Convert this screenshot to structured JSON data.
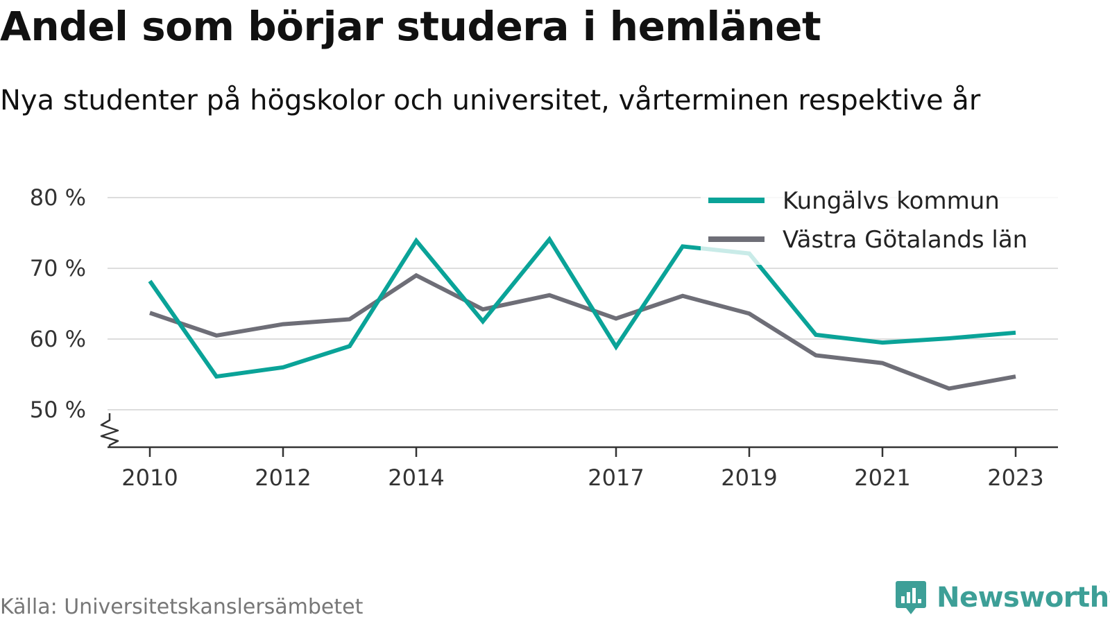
{
  "title": "Andel som börjar studera i hemlänet",
  "subtitle": "Nya studenter på högskolor och universitet, vårterminen respektive år",
  "source": "Källa: Universitetskanslersämbetet",
  "brand": "Newsworthy",
  "colors": {
    "kungalv": "#0aa398",
    "vastra": "#6e6e77",
    "grid": "#dddddd",
    "axis": "#333333",
    "brand": "#3d9f97"
  },
  "chart_data": {
    "type": "line",
    "x": [
      2010,
      2011,
      2012,
      2013,
      2014,
      2015,
      2016,
      2017,
      2018,
      2019,
      2020,
      2021,
      2022,
      2023
    ],
    "x_ticks": [
      2010,
      2012,
      2014,
      2017,
      2019,
      2021,
      2023
    ],
    "x_tick_labels": [
      "2010",
      "2012",
      "2014",
      "2017",
      "2019",
      "2021",
      "2023"
    ],
    "y_ticks": [
      50,
      60,
      70,
      80
    ],
    "y_tick_labels": [
      "50 %",
      "60 %",
      "70 %",
      "80 %"
    ],
    "ylim": [
      45,
      80
    ],
    "y_axis_break": true,
    "grid": true,
    "legend_position": "top-right",
    "series": [
      {
        "name": "Kungälvs kommun",
        "color": "#0aa398",
        "values": [
          68.2,
          54.7,
          56.0,
          59.0,
          73.9,
          62.5,
          74.1,
          58.9,
          73.1,
          72.1,
          60.6,
          59.5,
          60.1,
          60.9
        ]
      },
      {
        "name": "Västra Götalands län",
        "color": "#6e6e77",
        "values": [
          63.7,
          60.5,
          62.1,
          62.8,
          69.0,
          64.2,
          66.2,
          62.9,
          66.1,
          63.6,
          57.7,
          56.6,
          53.0,
          54.7
        ]
      }
    ]
  }
}
